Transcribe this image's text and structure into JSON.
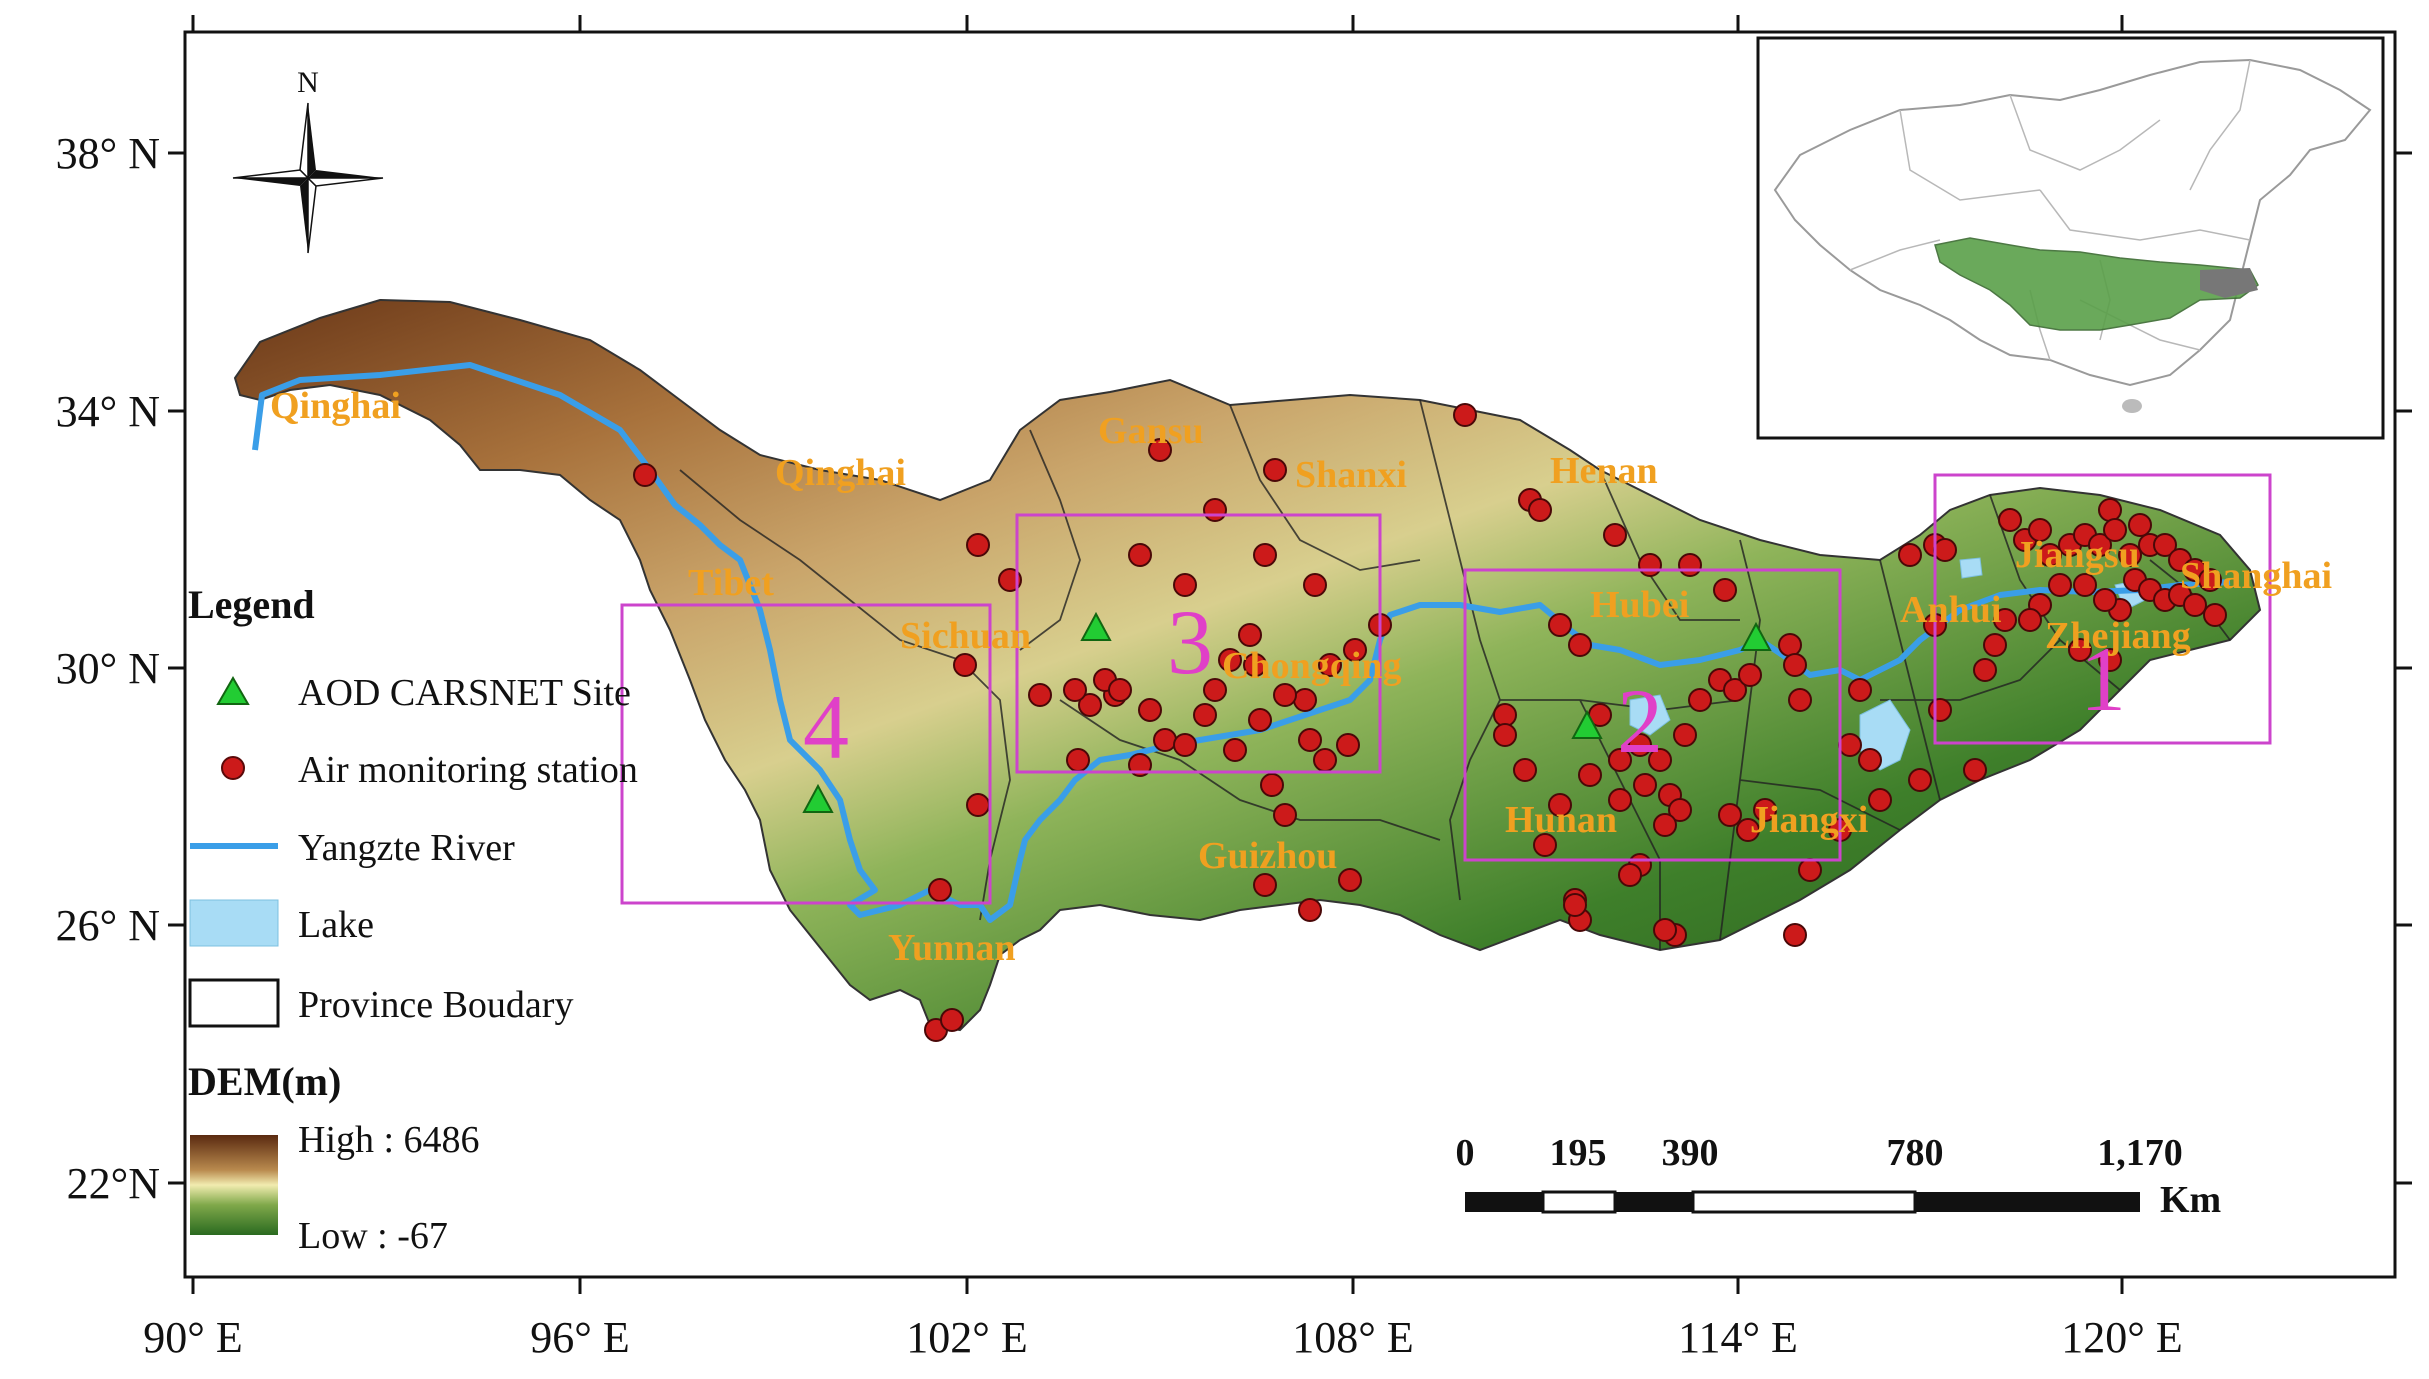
{
  "axes": {
    "x_ticks": [
      "90° E",
      "96° E",
      "102° E",
      "108° E",
      "114° E",
      "120° E"
    ],
    "y_ticks": [
      "38° N",
      "34° N",
      "30° N",
      "26° N",
      "22°N"
    ]
  },
  "north_arrow": {
    "label": "N"
  },
  "provinces": [
    "Qinghai",
    "Qinghai",
    "Tibet",
    "Sichuan",
    "Gansu",
    "Shanxi",
    "Henan",
    "Hubei",
    "Chongqing",
    "Guizhou",
    "Yunnan",
    "Hunan",
    "Jiangxi",
    "Anhui",
    "Jiangsu",
    "Shanghai",
    "Zhejiang"
  ],
  "regions": [
    "1",
    "2",
    "3",
    "4"
  ],
  "legend": {
    "title": "Legend",
    "items": [
      "AOD CARSNET Site",
      "Air monitoring station",
      "Yangzte River",
      "Lake",
      "Province Boudary"
    ],
    "dem_title": "DEM(m)",
    "dem_high": "High : 6486",
    "dem_low": "Low : -67"
  },
  "scale_bar": {
    "labels": [
      "0",
      "195",
      "390",
      "780",
      "1,170"
    ],
    "unit": "Km"
  },
  "colors": {
    "region_box": "#cc44cc",
    "river": "#3a9ee8",
    "site": "#22cc33",
    "station": "#cc1a1a",
    "lake": "#a8dcf5",
    "province_label": "#f0a020",
    "dem_high": "#5a2a10",
    "dem_mid": "#e8e2a0",
    "dem_low": "#2a6a20"
  },
  "inset": {
    "description_icon": "china-inset-map"
  }
}
